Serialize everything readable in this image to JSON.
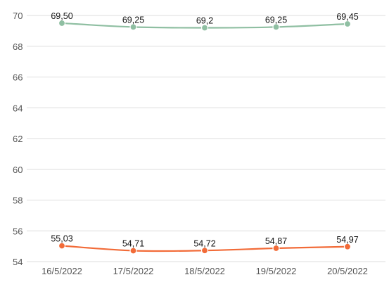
{
  "chart_data": {
    "type": "line",
    "title": "",
    "xlabel": "",
    "ylabel": "",
    "categories": [
      "16/5/2022",
      "17/5/2022",
      "18/5/2022",
      "19/5/2022",
      "20/5/2022"
    ],
    "ylim": [
      54,
      70
    ],
    "yticks": [
      54,
      56,
      58,
      60,
      62,
      64,
      66,
      68,
      70
    ],
    "grid": true,
    "legend": "none",
    "series": [
      {
        "color": "#8fbfa2",
        "values": [
          69.5,
          69.25,
          69.2,
          69.25,
          69.45
        ],
        "labels": [
          "69,50",
          "69,25",
          "69,2",
          "69,25",
          "69,45"
        ]
      },
      {
        "color": "#f26b38",
        "values": [
          55.03,
          54.71,
          54.72,
          54.87,
          54.97
        ],
        "labels": [
          "55,03",
          "54,71",
          "54,72",
          "54,87",
          "54,97"
        ]
      }
    ]
  }
}
